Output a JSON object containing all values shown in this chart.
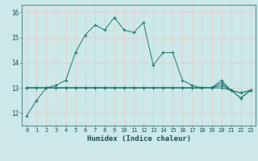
{
  "title": "",
  "xlabel": "Humidex (Indice chaleur)",
  "ylabel": "",
  "background_color": "#cce8e8",
  "plot_bg_color": "#cce8e8",
  "line_color": "#1a7a6e",
  "grid_color": "#b8d8d8",
  "series": [
    {
      "x": [
        0,
        1,
        2,
        3,
        4,
        5,
        6,
        7,
        8,
        9,
        10,
        11,
        12,
        13,
        14,
        15,
        16,
        17,
        18,
        19,
        20,
        21,
        22,
        23
      ],
      "y": [
        11.9,
        12.5,
        13.0,
        13.1,
        13.3,
        14.4,
        15.1,
        15.5,
        15.3,
        15.8,
        15.3,
        15.2,
        15.6,
        13.9,
        14.4,
        14.4,
        13.3,
        13.1,
        13.0,
        13.0,
        13.2,
        12.9,
        12.6,
        12.9
      ]
    },
    {
      "x": [
        0,
        1,
        2,
        3,
        4,
        5,
        6,
        7,
        8,
        9,
        10,
        11,
        12,
        13,
        14,
        15,
        16,
        17,
        18,
        19,
        20,
        21,
        22,
        23
      ],
      "y": [
        13.0,
        13.0,
        13.0,
        13.0,
        13.0,
        13.0,
        13.0,
        13.0,
        13.0,
        13.0,
        13.0,
        13.0,
        13.0,
        13.0,
        13.0,
        13.0,
        13.0,
        13.0,
        13.0,
        13.0,
        13.3,
        12.9,
        12.6,
        12.9
      ]
    },
    {
      "x": [
        0,
        1,
        2,
        3,
        4,
        5,
        6,
        7,
        8,
        9,
        10,
        11,
        12,
        13,
        14,
        15,
        16,
        17,
        18,
        19,
        20,
        21,
        22,
        23
      ],
      "y": [
        13.0,
        13.0,
        13.0,
        13.0,
        13.0,
        13.0,
        13.0,
        13.0,
        13.0,
        13.0,
        13.0,
        13.0,
        13.0,
        13.0,
        13.0,
        13.0,
        13.0,
        13.0,
        13.0,
        13.0,
        13.1,
        12.9,
        12.8,
        12.9
      ]
    },
    {
      "x": [
        0,
        1,
        2,
        3,
        4,
        5,
        6,
        7,
        8,
        9,
        10,
        11,
        12,
        13,
        14,
        15,
        16,
        17,
        18,
        19,
        20,
        21,
        22,
        23
      ],
      "y": [
        13.0,
        13.0,
        13.0,
        13.0,
        13.0,
        13.0,
        13.0,
        13.0,
        13.0,
        13.0,
        13.0,
        13.0,
        13.0,
        13.0,
        13.0,
        13.0,
        13.0,
        13.0,
        13.0,
        13.0,
        13.0,
        12.9,
        12.8,
        12.9
      ]
    }
  ],
  "xlim": [
    -0.5,
    23.5
  ],
  "ylim": [
    11.5,
    16.3
  ],
  "yticks": [
    12,
    13,
    14,
    15,
    16
  ],
  "xticks": [
    0,
    1,
    2,
    3,
    4,
    5,
    6,
    7,
    8,
    9,
    10,
    11,
    12,
    13,
    14,
    15,
    16,
    17,
    18,
    19,
    20,
    21,
    22,
    23
  ],
  "tick_fontsize": 5.0,
  "xlabel_fontsize": 6.5,
  "ytick_fontsize": 5.5
}
